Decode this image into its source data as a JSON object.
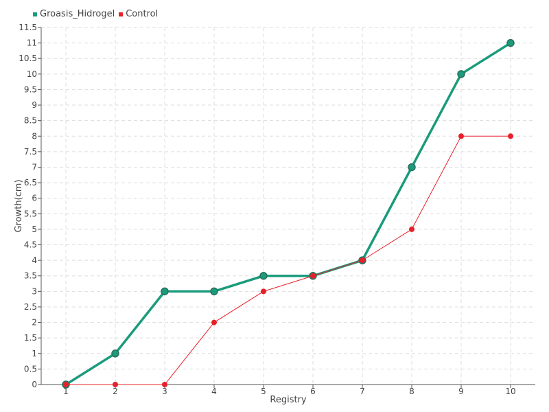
{
  "chart_data": {
    "type": "line",
    "xlabel": "Registry",
    "ylabel": "Growth(cm)",
    "x": [
      1,
      2,
      3,
      4,
      5,
      6,
      7,
      8,
      9,
      10
    ],
    "xlim": [
      0.5,
      10.5
    ],
    "ylim": [
      0,
      11.5
    ],
    "ytick_step": 0.5,
    "grid": true,
    "legend_position": "top-left",
    "series": [
      {
        "name": "Groasis_Hidrogel",
        "color": "#1a9b7c",
        "values": [
          0,
          1,
          3,
          3,
          3.5,
          3.5,
          4,
          7,
          10,
          11
        ]
      },
      {
        "name": "Control",
        "color": "#e8202a",
        "values": [
          0,
          0,
          0,
          2,
          3,
          3.5,
          4,
          5,
          8,
          8
        ]
      }
    ]
  }
}
